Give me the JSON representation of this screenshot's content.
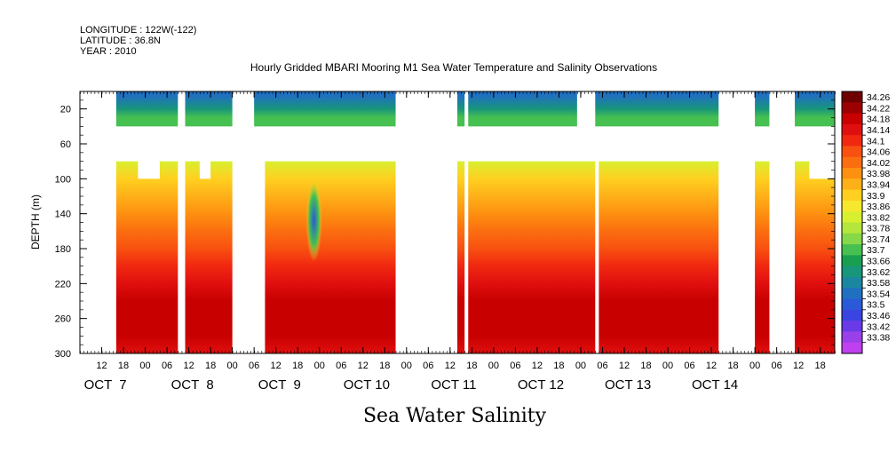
{
  "header": {
    "longitude": "LONGITUDE : 122W(-122)",
    "latitude": "LATITUDE : 36.8N",
    "year": "YEAR : 2010"
  },
  "chart_data": {
    "type": "heatmap",
    "title": "Hourly Gridded MBARI Mooring M1 Sea Water Temperature and Salinity Observations",
    "subtitle_variable": "Sea Water Salinity",
    "ylabel": "DEPTH (m)",
    "xlabel": "",
    "y_axis": {
      "inverted": true,
      "ylim": [
        0,
        300
      ],
      "ticks": [
        20,
        60,
        100,
        140,
        180,
        220,
        260,
        300
      ]
    },
    "x_axis": {
      "range_hours": [
        0,
        208
      ],
      "start_time": "2010-10-06T06:00",
      "hour_ticks": [
        {
          "t": 6,
          "label": "12"
        },
        {
          "t": 12,
          "label": "18"
        },
        {
          "t": 18,
          "label": "00"
        },
        {
          "t": 24,
          "label": "06"
        },
        {
          "t": 30,
          "label": "12"
        },
        {
          "t": 36,
          "label": "18"
        },
        {
          "t": 42,
          "label": "00"
        },
        {
          "t": 48,
          "label": "06"
        },
        {
          "t": 54,
          "label": "12"
        },
        {
          "t": 60,
          "label": "18"
        },
        {
          "t": 66,
          "label": "00"
        },
        {
          "t": 72,
          "label": "06"
        },
        {
          "t": 78,
          "label": "12"
        },
        {
          "t": 84,
          "label": "18"
        },
        {
          "t": 90,
          "label": "00"
        },
        {
          "t": 96,
          "label": "06"
        },
        {
          "t": 102,
          "label": "12"
        },
        {
          "t": 108,
          "label": "18"
        },
        {
          "t": 114,
          "label": "00"
        },
        {
          "t": 120,
          "label": "06"
        },
        {
          "t": 126,
          "label": "12"
        },
        {
          "t": 132,
          "label": "18"
        },
        {
          "t": 138,
          "label": "00"
        },
        {
          "t": 144,
          "label": "06"
        },
        {
          "t": 150,
          "label": "12"
        },
        {
          "t": 156,
          "label": "18"
        },
        {
          "t": 162,
          "label": "00"
        },
        {
          "t": 168,
          "label": "06"
        },
        {
          "t": 174,
          "label": "12"
        },
        {
          "t": 180,
          "label": "18"
        },
        {
          "t": 186,
          "label": "00"
        },
        {
          "t": 192,
          "label": "06"
        },
        {
          "t": 198,
          "label": "12"
        },
        {
          "t": 204,
          "label": "18"
        }
      ],
      "day_labels": [
        {
          "t": 7,
          "label": "OCT  7"
        },
        {
          "t": 31,
          "label": "OCT  8"
        },
        {
          "t": 55,
          "label": "OCT  9"
        },
        {
          "t": 79,
          "label": "OCT 10"
        },
        {
          "t": 103,
          "label": "OCT 11"
        },
        {
          "t": 127,
          "label": "OCT 12"
        },
        {
          "t": 151,
          "label": "OCT 13"
        },
        {
          "t": 175,
          "label": "OCT 14"
        }
      ]
    },
    "depth_bands": [
      {
        "name": "surface",
        "top": 0,
        "bottom": 40
      },
      {
        "name": "deep",
        "top": 80,
        "bottom": 300
      }
    ],
    "surface_segments": [
      {
        "t0": 0,
        "t1": 10,
        "present": false
      },
      {
        "t0": 10,
        "t1": 27,
        "present": true
      },
      {
        "t0": 27,
        "t1": 29,
        "present": false
      },
      {
        "t0": 29,
        "t1": 42,
        "present": true
      },
      {
        "t0": 42,
        "t1": 48,
        "present": false
      },
      {
        "t0": 48,
        "t1": 87,
        "present": true
      },
      {
        "t0": 87,
        "t1": 104,
        "present": false
      },
      {
        "t0": 104,
        "t1": 106,
        "present": true
      },
      {
        "t0": 106,
        "t1": 107,
        "present": false
      },
      {
        "t0": 107,
        "t1": 137,
        "present": true
      },
      {
        "t0": 137,
        "t1": 142,
        "present": false
      },
      {
        "t0": 142,
        "t1": 176,
        "present": true
      },
      {
        "t0": 176,
        "t1": 186,
        "present": false
      },
      {
        "t0": 186,
        "t1": 190,
        "present": true
      },
      {
        "t0": 190,
        "t1": 197,
        "present": false
      },
      {
        "t0": 197,
        "t1": 208,
        "present": true
      }
    ],
    "deep_segments": [
      {
        "t0": 0,
        "t1": 10,
        "present": false
      },
      {
        "t0": 10,
        "t1": 27,
        "present": true
      },
      {
        "t0": 27,
        "t1": 29,
        "present": false
      },
      {
        "t0": 29,
        "t1": 42,
        "present": true
      },
      {
        "t0": 42,
        "t1": 51,
        "present": false
      },
      {
        "t0": 51,
        "t1": 87,
        "present": true
      },
      {
        "t0": 87,
        "t1": 104,
        "present": false
      },
      {
        "t0": 104,
        "t1": 106,
        "present": true
      },
      {
        "t0": 106,
        "t1": 107,
        "present": false
      },
      {
        "t0": 107,
        "t1": 142,
        "present": true
      },
      {
        "t0": 142,
        "t1": 143,
        "present": false
      },
      {
        "t0": 143,
        "t1": 176,
        "present": true
      },
      {
        "t0": 176,
        "t1": 186,
        "present": false
      },
      {
        "t0": 186,
        "t1": 190,
        "present": true
      },
      {
        "t0": 190,
        "t1": 197,
        "present": false
      },
      {
        "t0": 197,
        "t1": 208,
        "present": true
      }
    ],
    "deep_top_dips": [
      {
        "t0": 16,
        "t1": 22,
        "depth": 100
      },
      {
        "t0": 33,
        "t1": 36,
        "depth": 100
      },
      {
        "t0": 201,
        "t1": 208,
        "depth": 100
      }
    ],
    "salinity_profile": [
      {
        "depth": 5,
        "value": 33.56
      },
      {
        "depth": 20,
        "value": 33.62
      },
      {
        "depth": 30,
        "value": 33.7
      },
      {
        "depth": 40,
        "value": 33.72
      },
      {
        "depth": 80,
        "value": 33.84
      },
      {
        "depth": 100,
        "value": 33.9
      },
      {
        "depth": 120,
        "value": 33.94
      },
      {
        "depth": 140,
        "value": 33.98
      },
      {
        "depth": 160,
        "value": 34.02
      },
      {
        "depth": 180,
        "value": 34.06
      },
      {
        "depth": 200,
        "value": 34.1
      },
      {
        "depth": 220,
        "value": 34.14
      },
      {
        "depth": 240,
        "value": 34.18
      },
      {
        "depth": 260,
        "value": 34.2
      },
      {
        "depth": 280,
        "value": 34.18
      },
      {
        "depth": 300,
        "value": 34.16
      }
    ],
    "low_salinity_intrusion": {
      "t_center": 64.5,
      "depth_top": 100,
      "depth_bottom": 195,
      "value": 33.52
    },
    "colorbar": {
      "levels": [
        "34.26",
        "34.22",
        "34.18",
        "34.14",
        "34.1",
        "34.06",
        "34.02",
        "33.98",
        "33.94",
        "33.9",
        "33.86",
        "33.82",
        "33.78",
        "33.74",
        "33.7",
        "33.66",
        "33.62",
        "33.58",
        "33.54",
        "33.5",
        "33.46",
        "33.42",
        "33.38"
      ],
      "colors": [
        "#6e0000",
        "#9c0000",
        "#c80000",
        "#e00f0f",
        "#f02810",
        "#f85010",
        "#fb6e10",
        "#fd9010",
        "#feb018",
        "#ffd020",
        "#f6e82c",
        "#d8ef30",
        "#b4e63c",
        "#86d848",
        "#46c050",
        "#18a050",
        "#18967a",
        "#1a86a0",
        "#2070c0",
        "#2a5ad8",
        "#3a44e0",
        "#6a3ae8",
        "#9a40e8",
        "#c040f0"
      ]
    }
  }
}
